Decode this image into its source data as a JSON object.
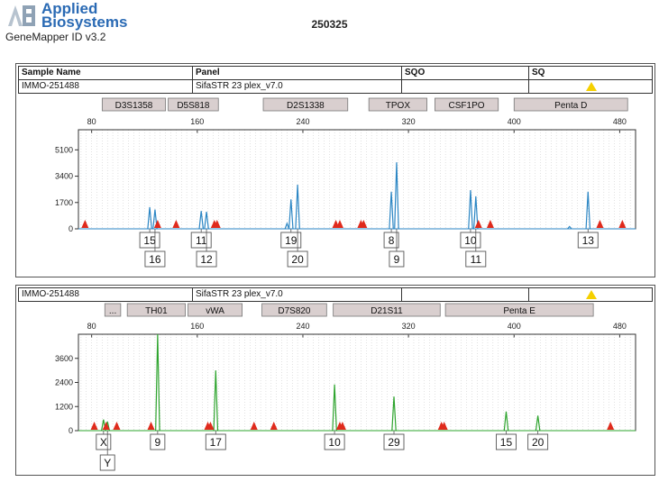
{
  "header": {
    "brand_line1": "Applied",
    "brand_line2": "Biosystems",
    "software_version": "GeneMapper ID v3.2",
    "report_id": "250325"
  },
  "table": {
    "columns": [
      "Sample Name",
      "Panel",
      "SQO",
      "SQ"
    ]
  },
  "colors": {
    "marker_fill": "#d9cfcf",
    "blue_dye": "#2b86c4",
    "green_dye": "#2ea42e",
    "size_standard": "#e02a1c",
    "warning": "#f5d000"
  },
  "chart_data": [
    {
      "type": "line",
      "panel_label": "blue",
      "sample_name": "IMMO-251488",
      "panel_name": "SifaSTR 23 plex_v7.0",
      "sqo": "",
      "sq_flag": "warning-triangle",
      "x_ticks": [
        80,
        160,
        240,
        320,
        400,
        480
      ],
      "y_ticks": [
        0,
        1700,
        3400,
        5100
      ],
      "xlim": [
        70,
        492
      ],
      "ylim": [
        0,
        6400
      ],
      "markers": [
        {
          "name": "D3S1358",
          "start": 88,
          "end": 136
        },
        {
          "name": "D5S818",
          "start": 138,
          "end": 176
        },
        {
          "name": "D2S1338",
          "start": 210,
          "end": 274
        },
        {
          "name": "TPOX",
          "start": 290,
          "end": 334
        },
        {
          "name": "CSF1PO",
          "start": 340,
          "end": 388
        },
        {
          "name": "Penta D",
          "start": 400,
          "end": 486
        }
      ],
      "peaks": [
        {
          "x": 124,
          "y": 1400
        },
        {
          "x": 128,
          "y": 1250
        },
        {
          "x": 163,
          "y": 1150
        },
        {
          "x": 167,
          "y": 1100
        },
        {
          "x": 228,
          "y": 350
        },
        {
          "x": 231,
          "y": 1900
        },
        {
          "x": 236,
          "y": 2850
        },
        {
          "x": 307,
          "y": 2400
        },
        {
          "x": 311,
          "y": 4300
        },
        {
          "x": 367,
          "y": 2500
        },
        {
          "x": 371,
          "y": 2100
        },
        {
          "x": 442,
          "y": 150
        },
        {
          "x": 456,
          "y": 2400
        }
      ],
      "size_standard_x": [
        75,
        130,
        144,
        173,
        175,
        265,
        268,
        284,
        286,
        373,
        382,
        465,
        482
      ],
      "allele_calls": [
        {
          "label": "15",
          "x": 124,
          "row": 1
        },
        {
          "label": "16",
          "x": 128,
          "row": 2
        },
        {
          "label": "11",
          "x": 163,
          "row": 1
        },
        {
          "label": "12",
          "x": 167,
          "row": 2
        },
        {
          "label": "19",
          "x": 231,
          "row": 1
        },
        {
          "label": "20",
          "x": 236,
          "row": 2
        },
        {
          "label": "8",
          "x": 307,
          "row": 1
        },
        {
          "label": "9",
          "x": 311,
          "row": 2
        },
        {
          "label": "10",
          "x": 367,
          "row": 1
        },
        {
          "label": "11",
          "x": 371,
          "row": 2
        },
        {
          "label": "13",
          "x": 456,
          "row": 1
        }
      ]
    },
    {
      "type": "line",
      "panel_label": "green",
      "sample_name": "IMMO-251488",
      "panel_name": "SifaSTR 23 plex_v7.0",
      "sqo": "",
      "sq_flag": "warning-triangle",
      "x_ticks": [
        80,
        160,
        240,
        320,
        400,
        480
      ],
      "y_ticks": [
        0,
        1200,
        2400,
        3600
      ],
      "xlim": [
        70,
        492
      ],
      "ylim": [
        0,
        4800
      ],
      "markers": [
        {
          "name": "...",
          "start": 90,
          "end": 102
        },
        {
          "name": "TH01",
          "start": 107,
          "end": 151
        },
        {
          "name": "vWA",
          "start": 153,
          "end": 194
        },
        {
          "name": "D7S820",
          "start": 209,
          "end": 258
        },
        {
          "name": "D21S11",
          "start": 263,
          "end": 344
        },
        {
          "name": "Penta E",
          "start": 348,
          "end": 460
        }
      ],
      "peaks": [
        {
          "x": 89,
          "y": 550
        },
        {
          "x": 92,
          "y": 450
        },
        {
          "x": 130,
          "y": 4800
        },
        {
          "x": 174,
          "y": 3000
        },
        {
          "x": 264,
          "y": 2300
        },
        {
          "x": 309,
          "y": 1700
        },
        {
          "x": 394,
          "y": 950
        },
        {
          "x": 418,
          "y": 750
        }
      ],
      "size_standard_x": [
        82,
        91,
        99,
        125,
        168,
        170,
        203,
        218,
        268,
        270,
        345,
        347,
        473
      ],
      "allele_calls": [
        {
          "label": "X",
          "x": 89,
          "row": 1
        },
        {
          "label": "Y",
          "x": 92,
          "row": 2
        },
        {
          "label": "9",
          "x": 130,
          "row": 1
        },
        {
          "label": "17",
          "x": 174,
          "row": 1
        },
        {
          "label": "10",
          "x": 264,
          "row": 1
        },
        {
          "label": "29",
          "x": 309,
          "row": 1
        },
        {
          "label": "15",
          "x": 394,
          "row": 1
        },
        {
          "label": "20",
          "x": 418,
          "row": 1
        }
      ]
    }
  ]
}
